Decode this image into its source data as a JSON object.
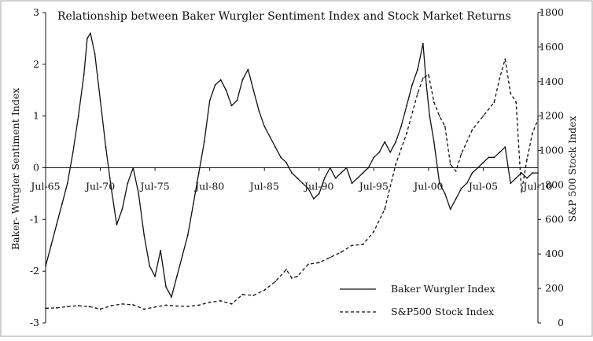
{
  "chart_data": {
    "type": "line",
    "title": "Relationship  between Baker Wurgler  Sentiment  Index and Stock Market Returns",
    "ylabel_left": "Baker- Wurgler Sentiment  Index",
    "ylabel_right": "S&P 500 Stock Index",
    "x_tick_labels": [
      "Jul-65",
      "Jul-70",
      "Jul-75",
      "Jul-80",
      "Jul-85",
      "Jul-90",
      "Jul-95",
      "Jul-00",
      "Jul-05",
      "Jul-10"
    ],
    "y_left_ticks": [
      "3",
      "2",
      "1",
      "0",
      "-1",
      "-2",
      "-3"
    ],
    "y_right_ticks": [
      "1800",
      "1600",
      "1400",
      "1200",
      "1000",
      "800",
      "600",
      "400",
      "200",
      "0"
    ],
    "y_left_range": [
      -3,
      3
    ],
    "y_right_range": [
      0,
      1800
    ],
    "x_range": [
      1965.5,
      2010.5
    ],
    "legend_position": "bottom-right",
    "colors": {
      "line": "#111111",
      "border": "#a0a0a0"
    },
    "series": [
      {
        "name": "Baker Wurgler Index",
        "axis": "left",
        "style": "solid",
        "x": [
          1965.5,
          1966.0,
          1966.5,
          1967.0,
          1967.5,
          1968.0,
          1968.5,
          1969.0,
          1969.3,
          1969.6,
          1970.0,
          1970.5,
          1971.0,
          1971.5,
          1972.0,
          1972.5,
          1973.0,
          1973.5,
          1974.0,
          1974.5,
          1975.0,
          1975.5,
          1976.0,
          1976.5,
          1977.0,
          1977.5,
          1978.0,
          1978.5,
          1979.0,
          1979.5,
          1980.0,
          1980.5,
          1981.0,
          1981.5,
          1982.0,
          1982.5,
          1983.0,
          1983.5,
          1984.0,
          1984.5,
          1985.0,
          1985.5,
          1986.0,
          1986.5,
          1987.0,
          1987.5,
          1988.0,
          1988.5,
          1989.0,
          1989.5,
          1990.0,
          1990.5,
          1991.0,
          1991.5,
          1992.0,
          1992.5,
          1993.0,
          1993.5,
          1994.0,
          1994.5,
          1995.0,
          1995.5,
          1996.0,
          1996.5,
          1997.0,
          1997.5,
          1998.0,
          1998.5,
          1999.0,
          1999.5,
          2000.0,
          2000.3,
          2000.6,
          2001.0,
          2001.5,
          2002.0,
          2002.5,
          2003.0,
          2003.5,
          2004.0,
          2004.5,
          2005.0,
          2005.5,
          2006.0,
          2006.5,
          2007.0,
          2007.5,
          2008.0,
          2008.5,
          2009.0,
          2009.5,
          2010.0,
          2010.5
        ],
        "values": [
          -1.9,
          -1.5,
          -1.1,
          -0.7,
          -0.3,
          0.3,
          1.0,
          1.8,
          2.5,
          2.6,
          2.2,
          1.3,
          0.4,
          -0.4,
          -1.1,
          -0.8,
          -0.3,
          0.0,
          -0.5,
          -1.3,
          -1.9,
          -2.1,
          -1.6,
          -2.3,
          -2.5,
          -2.1,
          -1.7,
          -1.3,
          -0.7,
          -0.1,
          0.5,
          1.3,
          1.6,
          1.7,
          1.5,
          1.2,
          1.3,
          1.7,
          1.9,
          1.5,
          1.1,
          0.8,
          0.6,
          0.4,
          0.2,
          0.1,
          -0.1,
          -0.2,
          -0.3,
          -0.4,
          -0.6,
          -0.5,
          -0.2,
          0.0,
          -0.2,
          -0.1,
          0.0,
          -0.3,
          -0.2,
          -0.1,
          0.0,
          0.2,
          0.3,
          0.5,
          0.3,
          0.5,
          0.8,
          1.2,
          1.6,
          1.9,
          2.4,
          1.6,
          1.0,
          0.5,
          -0.3,
          -0.5,
          -0.8,
          -0.6,
          -0.4,
          -0.3,
          -0.1,
          0.0,
          0.1,
          0.2,
          0.2,
          0.3,
          0.4,
          -0.3,
          -0.2,
          -0.1,
          -0.2,
          -0.1,
          -0.1
        ]
      },
      {
        "name": "S&P500 Stock Index",
        "axis": "right",
        "style": "dashed",
        "x": [
          1965.5,
          1966.5,
          1967.5,
          1968.5,
          1969.5,
          1970.5,
          1971.5,
          1972.5,
          1973.5,
          1974.5,
          1975.5,
          1976.5,
          1977.5,
          1978.5,
          1979.5,
          1980.5,
          1981.5,
          1982.5,
          1983.5,
          1984.5,
          1985.5,
          1986.5,
          1987.5,
          1988.0,
          1988.5,
          1989.5,
          1990.5,
          1991.5,
          1992.5,
          1993.5,
          1994.5,
          1995.5,
          1996.5,
          1997.5,
          1998.5,
          1999.5,
          2000.0,
          2000.5,
          2001.0,
          2001.5,
          2002.0,
          2002.5,
          2003.0,
          2003.5,
          2004.5,
          2005.5,
          2006.5,
          2007.0,
          2007.5,
          2008.0,
          2008.5,
          2009.0,
          2009.5,
          2010.0,
          2010.5
        ],
        "values": [
          85,
          87,
          95,
          100,
          95,
          80,
          100,
          110,
          105,
          80,
          92,
          103,
          98,
          96,
          103,
          120,
          128,
          110,
          165,
          160,
          190,
          240,
          310,
          260,
          270,
          340,
          350,
          380,
          410,
          450,
          455,
          530,
          660,
          920,
          1100,
          1330,
          1420,
          1440,
          1280,
          1200,
          1140,
          920,
          880,
          980,
          1120,
          1200,
          1280,
          1420,
          1530,
          1330,
          1280,
          760,
          950,
          1100,
          1180
        ]
      }
    ]
  }
}
